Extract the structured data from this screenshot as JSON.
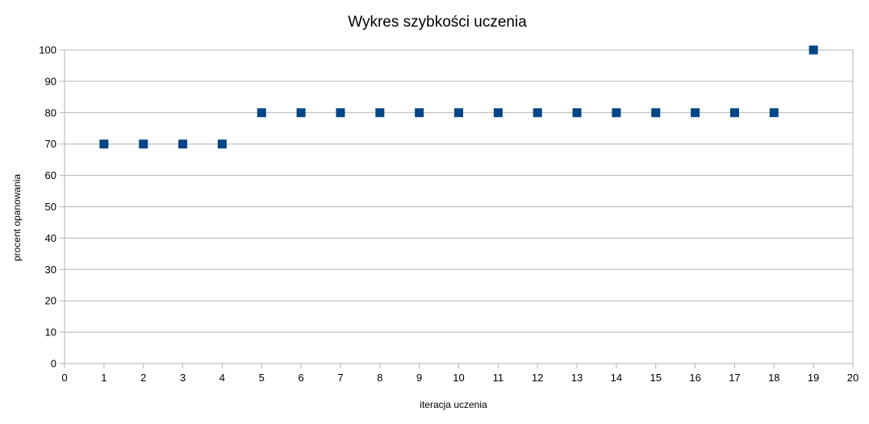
{
  "chart_data": {
    "type": "scatter",
    "title": "Wykres szybkości uczenia",
    "xlabel": "iteracja uczenia",
    "ylabel": "procent opanowania",
    "xlim": [
      0,
      20
    ],
    "ylim": [
      0,
      100
    ],
    "xticks": [
      "0",
      "1",
      "2",
      "3",
      "4",
      "5",
      "6",
      "7",
      "8",
      "9",
      "10",
      "11",
      "12",
      "13",
      "14",
      "15",
      "16",
      "17",
      "18",
      "19",
      "20"
    ],
    "yticks": [
      "0",
      "10",
      "20",
      "30",
      "40",
      "50",
      "60",
      "70",
      "80",
      "90",
      "100"
    ],
    "grid": true,
    "legend": "none",
    "marker_color": "#004586",
    "series": [
      {
        "name": "",
        "x": [
          1,
          2,
          3,
          4,
          5,
          6,
          7,
          8,
          9,
          10,
          11,
          12,
          13,
          14,
          15,
          16,
          17,
          18,
          19
        ],
        "y": [
          70,
          70,
          70,
          70,
          80,
          80,
          80,
          80,
          80,
          80,
          80,
          80,
          80,
          80,
          80,
          80,
          80,
          80,
          100
        ]
      }
    ]
  }
}
